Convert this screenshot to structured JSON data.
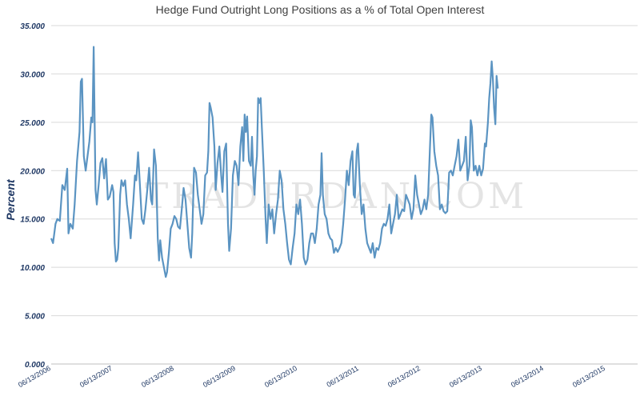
{
  "chart_data": {
    "type": "line",
    "title": "Hedge Fund Outright Long Positions as a % of Total Open Interest",
    "ylabel": "Percent",
    "xlabel": "",
    "ylim": [
      0,
      35
    ],
    "yticks": [
      "0.000",
      "5.000",
      "10.000",
      "15.000",
      "20.000",
      "25.000",
      "30.000",
      "35.000"
    ],
    "xticks": [
      "06/13/2006",
      "06/13/2007",
      "06/13/2008",
      "06/13/2009",
      "06/13/2010",
      "06/13/2011",
      "06/13/2012",
      "06/13/2013",
      "06/13/2014",
      "06/13/2015"
    ],
    "x_range": [
      "06/13/2006",
      "03/15/2016"
    ],
    "watermark": "TRADERDAN.COM",
    "grid": true,
    "line_color": "#5b94c2",
    "series": [
      {
        "points": [
          [
            0.0,
            13.0
          ],
          [
            0.03,
            12.5
          ],
          [
            0.07,
            14.5
          ],
          [
            0.1,
            15.0
          ],
          [
            0.14,
            14.8
          ],
          [
            0.18,
            18.5
          ],
          [
            0.22,
            18.0
          ],
          [
            0.26,
            20.2
          ],
          [
            0.28,
            13.5
          ],
          [
            0.31,
            14.5
          ],
          [
            0.35,
            14.0
          ],
          [
            0.38,
            16.5
          ],
          [
            0.42,
            21.0
          ],
          [
            0.46,
            24.0
          ],
          [
            0.48,
            29.2
          ],
          [
            0.5,
            29.5
          ],
          [
            0.53,
            21.5
          ],
          [
            0.56,
            20.0
          ],
          [
            0.59,
            21.5
          ],
          [
            0.62,
            23.0
          ],
          [
            0.65,
            25.5
          ],
          [
            0.67,
            25.0
          ],
          [
            0.69,
            32.8
          ],
          [
            0.72,
            18.0
          ],
          [
            0.74,
            16.5
          ],
          [
            0.77,
            18.5
          ],
          [
            0.8,
            20.8
          ],
          [
            0.83,
            21.3
          ],
          [
            0.86,
            19.2
          ],
          [
            0.89,
            21.2
          ],
          [
            0.92,
            17.0
          ],
          [
            0.95,
            17.3
          ],
          [
            0.99,
            18.5
          ],
          [
            1.01,
            17.8
          ],
          [
            1.03,
            12.5
          ],
          [
            1.05,
            10.6
          ],
          [
            1.07,
            10.8
          ],
          [
            1.09,
            12.0
          ],
          [
            1.12,
            17.5
          ],
          [
            1.14,
            19.0
          ],
          [
            1.17,
            18.4
          ],
          [
            1.2,
            19.0
          ],
          [
            1.23,
            16.5
          ],
          [
            1.26,
            15.0
          ],
          [
            1.29,
            13.0
          ],
          [
            1.33,
            16.5
          ],
          [
            1.36,
            19.5
          ],
          [
            1.38,
            19.0
          ],
          [
            1.41,
            21.9
          ],
          [
            1.44,
            18.5
          ],
          [
            1.47,
            15.0
          ],
          [
            1.5,
            14.5
          ],
          [
            1.53,
            16.0
          ],
          [
            1.56,
            18.0
          ],
          [
            1.59,
            20.3
          ],
          [
            1.62,
            17.0
          ],
          [
            1.64,
            16.5
          ],
          [
            1.67,
            22.2
          ],
          [
            1.7,
            20.5
          ],
          [
            1.73,
            13.0
          ],
          [
            1.75,
            10.7
          ],
          [
            1.77,
            12.8
          ],
          [
            1.8,
            11.0
          ],
          [
            1.83,
            10.0
          ],
          [
            1.86,
            9.0
          ],
          [
            1.88,
            9.5
          ],
          [
            1.91,
            11.5
          ],
          [
            1.94,
            14.0
          ],
          [
            1.97,
            14.5
          ],
          [
            2.0,
            15.3
          ],
          [
            2.03,
            15.0
          ],
          [
            2.06,
            14.2
          ],
          [
            2.09,
            14.0
          ],
          [
            2.12,
            16.0
          ],
          [
            2.15,
            18.2
          ],
          [
            2.18,
            17.0
          ],
          [
            2.21,
            14.5
          ],
          [
            2.24,
            12.0
          ],
          [
            2.27,
            11.0
          ],
          [
            2.29,
            13.5
          ],
          [
            2.32,
            20.3
          ],
          [
            2.35,
            19.8
          ],
          [
            2.38,
            17.5
          ],
          [
            2.41,
            16.0
          ],
          [
            2.44,
            14.5
          ],
          [
            2.47,
            15.5
          ],
          [
            2.5,
            19.5
          ],
          [
            2.53,
            19.8
          ],
          [
            2.55,
            22.0
          ],
          [
            2.57,
            27.0
          ],
          [
            2.59,
            26.5
          ],
          [
            2.62,
            25.5
          ],
          [
            2.65,
            22.5
          ],
          [
            2.67,
            18.0
          ],
          [
            2.7,
            20.8
          ],
          [
            2.73,
            22.5
          ],
          [
            2.76,
            19.5
          ],
          [
            2.78,
            17.8
          ],
          [
            2.81,
            22.0
          ],
          [
            2.84,
            22.8
          ],
          [
            2.87,
            14.5
          ],
          [
            2.89,
            11.7
          ],
          [
            2.92,
            14.0
          ],
          [
            2.95,
            19.5
          ],
          [
            2.98,
            21.0
          ],
          [
            3.01,
            20.5
          ],
          [
            3.04,
            18.5
          ],
          [
            3.07,
            22.5
          ],
          [
            3.1,
            24.5
          ],
          [
            3.12,
            21.0
          ],
          [
            3.14,
            25.8
          ],
          [
            3.16,
            24.0
          ],
          [
            3.18,
            25.6
          ],
          [
            3.21,
            21.0
          ],
          [
            3.24,
            20.5
          ],
          [
            3.26,
            23.5
          ],
          [
            3.28,
            19.5
          ],
          [
            3.3,
            17.5
          ],
          [
            3.32,
            20.0
          ],
          [
            3.34,
            21.5
          ],
          [
            3.36,
            27.5
          ],
          [
            3.38,
            27.0
          ],
          [
            3.4,
            27.5
          ],
          [
            3.42,
            24.5
          ],
          [
            3.45,
            20.0
          ],
          [
            3.48,
            15.0
          ],
          [
            3.5,
            12.5
          ],
          [
            3.53,
            16.5
          ],
          [
            3.56,
            15.0
          ],
          [
            3.59,
            16.0
          ],
          [
            3.62,
            13.5
          ],
          [
            3.65,
            15.5
          ],
          [
            3.68,
            17.0
          ],
          [
            3.71,
            20.0
          ],
          [
            3.74,
            19.0
          ],
          [
            3.77,
            16.0
          ],
          [
            3.8,
            14.5
          ],
          [
            3.83,
            12.5
          ],
          [
            3.86,
            10.8
          ],
          [
            3.89,
            10.3
          ],
          [
            3.92,
            12.0
          ],
          [
            3.95,
            13.5
          ],
          [
            3.98,
            16.5
          ],
          [
            4.01,
            15.5
          ],
          [
            4.04,
            17.0
          ],
          [
            4.07,
            14.5
          ],
          [
            4.1,
            11.0
          ],
          [
            4.13,
            10.3
          ],
          [
            4.16,
            10.8
          ],
          [
            4.19,
            12.5
          ],
          [
            4.22,
            13.5
          ],
          [
            4.25,
            13.5
          ],
          [
            4.28,
            12.5
          ],
          [
            4.31,
            14.0
          ],
          [
            4.34,
            16.5
          ],
          [
            4.37,
            17.5
          ],
          [
            4.39,
            21.8
          ],
          [
            4.41,
            17.5
          ],
          [
            4.44,
            15.5
          ],
          [
            4.47,
            15.0
          ],
          [
            4.5,
            13.5
          ],
          [
            4.53,
            13.0
          ],
          [
            4.56,
            12.8
          ],
          [
            4.59,
            11.5
          ],
          [
            4.62,
            12.0
          ],
          [
            4.65,
            11.6
          ],
          [
            4.68,
            12.0
          ],
          [
            4.71,
            12.5
          ],
          [
            4.74,
            14.5
          ],
          [
            4.77,
            17.0
          ],
          [
            4.8,
            20.0
          ],
          [
            4.83,
            18.5
          ],
          [
            4.86,
            21.0
          ],
          [
            4.89,
            22.0
          ],
          [
            4.91,
            17.5
          ],
          [
            4.93,
            17.2
          ],
          [
            4.96,
            22.0
          ],
          [
            4.98,
            22.8
          ],
          [
            5.01,
            18.5
          ],
          [
            5.04,
            15.5
          ],
          [
            5.07,
            16.5
          ],
          [
            5.1,
            14.0
          ],
          [
            5.13,
            12.5
          ],
          [
            5.16,
            12.0
          ],
          [
            5.19,
            11.5
          ],
          [
            5.22,
            12.5
          ],
          [
            5.25,
            11.0
          ],
          [
            5.28,
            12.0
          ],
          [
            5.31,
            11.8
          ],
          [
            5.34,
            12.5
          ],
          [
            5.37,
            14.0
          ],
          [
            5.4,
            14.5
          ],
          [
            5.43,
            14.3
          ],
          [
            5.46,
            15.0
          ],
          [
            5.49,
            16.5
          ],
          [
            5.52,
            13.5
          ],
          [
            5.55,
            14.5
          ],
          [
            5.58,
            15.5
          ],
          [
            5.61,
            17.5
          ],
          [
            5.64,
            15.0
          ],
          [
            5.67,
            15.5
          ],
          [
            5.7,
            16.0
          ],
          [
            5.73,
            15.8
          ],
          [
            5.76,
            17.5
          ],
          [
            5.79,
            17.0
          ],
          [
            5.82,
            16.5
          ],
          [
            5.85,
            15.0
          ],
          [
            5.88,
            16.0
          ],
          [
            5.91,
            19.5
          ],
          [
            5.94,
            17.5
          ],
          [
            5.97,
            16.5
          ],
          [
            6.0,
            15.5
          ],
          [
            6.03,
            16.0
          ],
          [
            6.06,
            17.0
          ],
          [
            6.09,
            16.0
          ],
          [
            6.12,
            17.5
          ],
          [
            6.15,
            22.5
          ],
          [
            6.17,
            25.8
          ],
          [
            6.19,
            25.5
          ],
          [
            6.22,
            22.0
          ],
          [
            6.25,
            20.5
          ],
          [
            6.28,
            19.5
          ],
          [
            6.31,
            16.0
          ],
          [
            6.34,
            16.5
          ],
          [
            6.37,
            15.8
          ],
          [
            6.4,
            15.6
          ],
          [
            6.43,
            15.8
          ],
          [
            6.46,
            19.8
          ],
          [
            6.49,
            20.0
          ],
          [
            6.52,
            19.5
          ],
          [
            6.55,
            20.5
          ],
          [
            6.58,
            21.5
          ],
          [
            6.61,
            23.2
          ],
          [
            6.64,
            20.0
          ],
          [
            6.67,
            20.5
          ],
          [
            6.7,
            21.0
          ],
          [
            6.73,
            23.5
          ],
          [
            6.76,
            19.0
          ],
          [
            6.79,
            20.5
          ],
          [
            6.81,
            25.2
          ],
          [
            6.83,
            24.5
          ],
          [
            6.86,
            20.0
          ],
          [
            6.89,
            20.5
          ],
          [
            6.92,
            19.5
          ],
          [
            6.95,
            20.5
          ],
          [
            6.98,
            19.5
          ],
          [
            7.01,
            20.2
          ],
          [
            7.04,
            22.8
          ],
          [
            7.06,
            22.5
          ],
          [
            7.09,
            25.0
          ],
          [
            7.11,
            27.5
          ],
          [
            7.13,
            29.0
          ],
          [
            7.15,
            31.3
          ],
          [
            7.17,
            29.5
          ],
          [
            7.19,
            26.5
          ],
          [
            7.21,
            24.8
          ],
          [
            7.23,
            29.8
          ],
          [
            7.25,
            28.5
          ]
        ]
      }
    ]
  }
}
